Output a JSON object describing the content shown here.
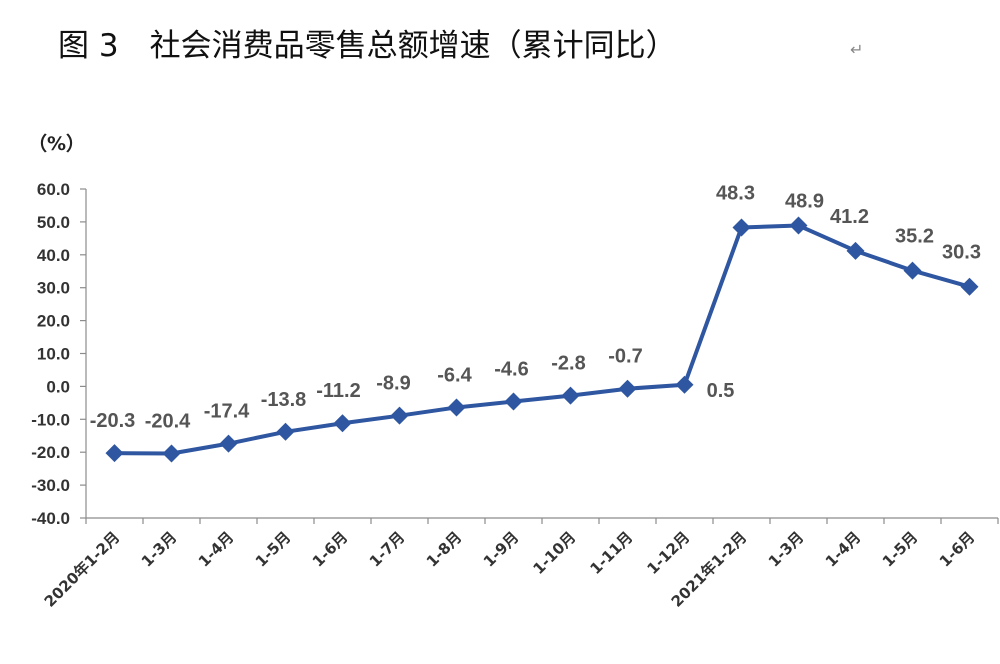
{
  "title": "图 3　社会消费品零售总额增速（累计同比）",
  "title_mark": "↵",
  "chart_data": {
    "type": "line",
    "ylabel": "（%）",
    "ylim": [
      -40.0,
      60.0
    ],
    "yticks": [
      "60.0",
      "50.0",
      "40.0",
      "30.0",
      "20.0",
      "10.0",
      "0.0",
      "-10.0",
      "-20.0",
      "-30.0",
      "-40.0"
    ],
    "categories": [
      "2020年1-2月",
      "1-3月",
      "1-4月",
      "1-5月",
      "1-6月",
      "1-7月",
      "1-8月",
      "1-9月",
      "1-10月",
      "1-11月",
      "1-12月",
      "2021年1-2月",
      "1-3月",
      "1-4月",
      "1-5月",
      "1-6月"
    ],
    "series": [
      {
        "values": [
          -20.3,
          -20.4,
          -17.4,
          -13.8,
          -11.2,
          -8.9,
          -6.4,
          -4.6,
          -2.8,
          -0.7,
          0.5,
          48.3,
          48.9,
          41.2,
          35.2,
          30.3
        ],
        "labels": [
          "-20.3",
          "-20.4",
          "-17.4",
          "-13.8",
          "-11.2",
          "-8.9",
          "-6.4",
          "-4.6",
          "-2.8",
          "-0.7",
          "0.5",
          "48.3",
          "48.9",
          "41.2",
          "35.2",
          "30.3"
        ],
        "color": "#2f56a0"
      }
    ],
    "grid": false,
    "legend": "none"
  }
}
